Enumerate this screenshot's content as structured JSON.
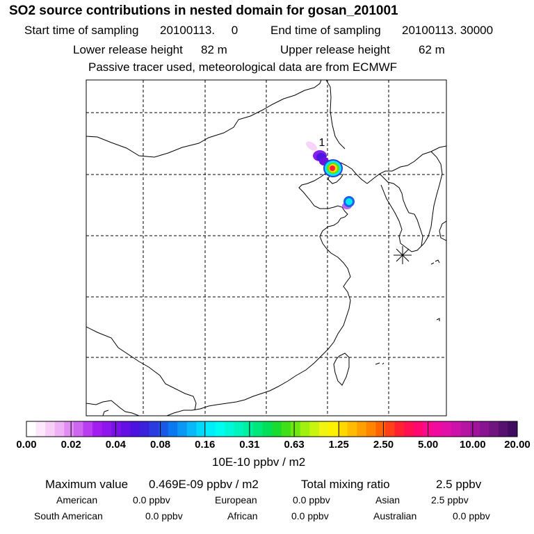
{
  "header": {
    "title": "SO2 source contributions in nested domain for gosan_201001",
    "start_label": "Start time of sampling",
    "start_value": "20100113.     0",
    "end_label": "End time of sampling",
    "end_value": "20100113. 30000",
    "lower_label": "Lower release height",
    "lower_value": "82 m",
    "upper_label": "Upper release height",
    "upper_value": "62 m",
    "note": "Passive tracer used, meteorological data are from ECMWF"
  },
  "map": {
    "source_label": "1",
    "receptor_symbol": "gosan-receptor"
  },
  "colorbar": {
    "tick_labels": [
      "0.00",
      "0.02",
      "0.04",
      "0.08",
      "0.16",
      "0.31",
      "0.63",
      "1.25",
      "2.50",
      "5.00",
      "10.00",
      "20.00"
    ],
    "colors": [
      "#ffffff",
      "#fde8fd",
      "#f8cef9",
      "#f0b0f5",
      "#e08cf2",
      "#cd67f0",
      "#b83ef0",
      "#a41df0",
      "#8f16ec",
      "#7a12e8",
      "#6410e4",
      "#4c12e0",
      "#3a22dc",
      "#2a3ce0",
      "#1a58e8",
      "#0a78f0",
      "#0a98f4",
      "#08b8f8",
      "#00d8fc",
      "#00eefc",
      "#00fcf0",
      "#00f8d8",
      "#00f4bc",
      "#00f0a0",
      "#00e87c",
      "#00e058",
      "#18dc30",
      "#40e018",
      "#70e810",
      "#a0f010",
      "#c8f410",
      "#f0f410",
      "#fff000",
      "#ffd800",
      "#ffbc00",
      "#ffa000",
      "#ff8400",
      "#ff6400",
      "#ff4018",
      "#ff2030",
      "#ff1050",
      "#ff0870",
      "#fc0890",
      "#f00aa0",
      "#e010a8",
      "#cc12a8",
      "#b814a4",
      "#a0149c",
      "#881490",
      "#701480",
      "#581070",
      "#400c60"
    ],
    "unit": "10E-10 ppbv / m2"
  },
  "summary": {
    "max_label": "Maximum value",
    "max_value": "0.469E-09 ppbv / m2",
    "total_label": "Total mixing ratio",
    "total_value": "2.5 ppbv",
    "regions": [
      {
        "name": "American",
        "value": "0.0 ppbv"
      },
      {
        "name": "European",
        "value": "0.0 ppbv"
      },
      {
        "name": "Asian",
        "value": "2.5 ppbv"
      },
      {
        "name": "South American",
        "value": "0.0 ppbv"
      },
      {
        "name": "African",
        "value": "0.0 ppbv"
      },
      {
        "name": "Australian",
        "value": "0.0 ppbv"
      }
    ]
  }
}
